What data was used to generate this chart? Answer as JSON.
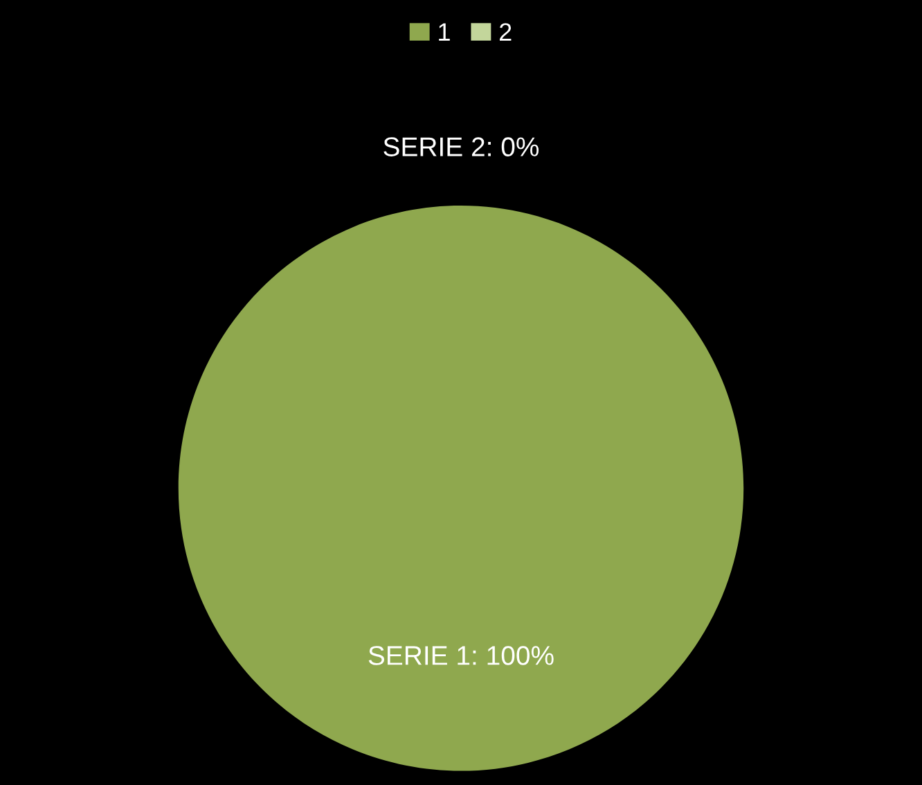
{
  "chart_data": {
    "type": "pie",
    "categories": [
      "1",
      "2"
    ],
    "values": [
      100,
      0
    ],
    "colors": [
      "#8fa84e",
      "#c3d69b"
    ],
    "value_labels": [
      "SERIE 1: 100%",
      "SERIE 2: 0%"
    ],
    "legend": "top"
  }
}
